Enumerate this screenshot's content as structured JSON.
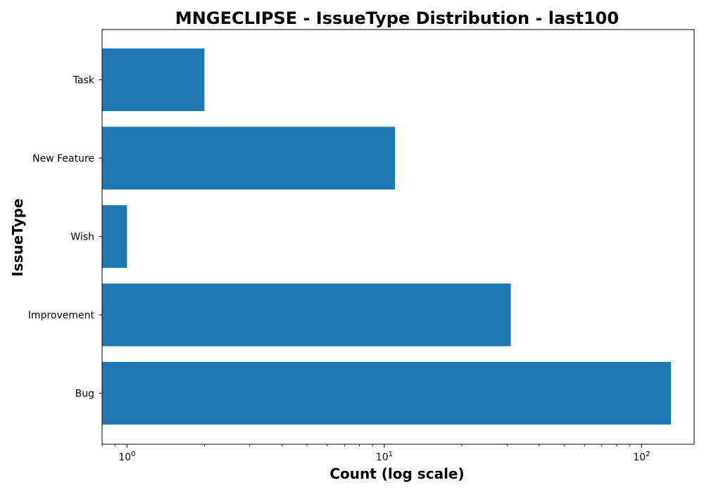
{
  "chart_data": {
    "type": "bar",
    "orientation": "horizontal",
    "title": "MNGECLIPSE - IssueType Distribution - last100",
    "xlabel": "Count (log scale)",
    "ylabel": "IssueType",
    "x_scale": "log",
    "xlim": [
      0.8,
      160
    ],
    "x_ticks": [
      {
        "value": 1,
        "label": "10",
        "exponent": "0"
      },
      {
        "value": 10,
        "label": "10",
        "exponent": "1"
      },
      {
        "value": 100,
        "label": "10",
        "exponent": "2"
      }
    ],
    "categories": [
      "Bug",
      "Improvement",
      "Wish",
      "New Feature",
      "Task"
    ],
    "values": [
      130,
      31,
      1,
      11,
      2
    ],
    "bar_color": "#1f77b4",
    "grid": false,
    "legend": "none"
  }
}
